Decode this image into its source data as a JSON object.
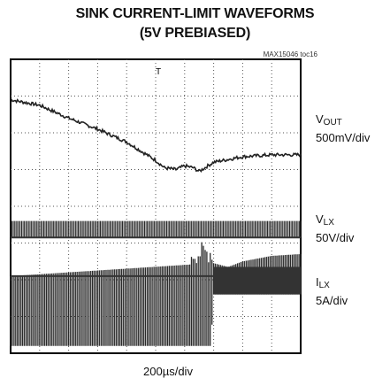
{
  "chart_data": {
    "type": "line",
    "title": "SINK CURRENT-LIMIT WAVEFORMS",
    "subtitle": "(5V PREBIASED)",
    "chart_id": "MAX15046 toc16",
    "x_axis_label": "200µs/div",
    "divisions": {
      "x": 10,
      "y": 8
    },
    "grid": true,
    "trigger_marker": "T",
    "traces": [
      {
        "symbol": "V",
        "subscript": "OUT",
        "scale": "500mV/div",
        "x": [
          0,
          1,
          2,
          3,
          4,
          5,
          5.3,
          5.7,
          6,
          6.3,
          6.5,
          7,
          8,
          9,
          10
        ],
        "y": [
          6.9,
          6.75,
          6.4,
          6.1,
          5.75,
          5.25,
          5.05,
          5.0,
          5.1,
          5.05,
          4.95,
          5.2,
          5.35,
          5.4,
          5.4
        ]
      },
      {
        "symbol": "V",
        "subscript": "LX",
        "scale": "50V/div",
        "x": [
          0,
          10
        ],
        "y_low": [
          3.15,
          3.15
        ],
        "y_high": [
          3.6,
          3.6
        ]
      },
      {
        "symbol": "I",
        "subscript": "LX",
        "scale": "5A/div",
        "x": [
          0,
          6.9,
          7,
          7.5,
          8,
          9,
          10
        ],
        "y_low": [
          0.2,
          0.2,
          1.6,
          1.6,
          1.6,
          1.6,
          1.6
        ],
        "y_high": [
          2.1,
          2.45,
          2.45,
          2.35,
          2.5,
          2.65,
          2.7
        ]
      }
    ]
  }
}
